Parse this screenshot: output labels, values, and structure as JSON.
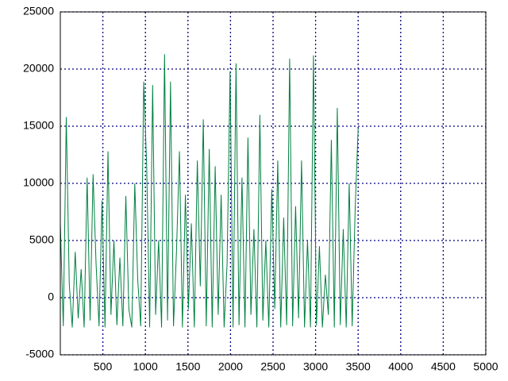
{
  "chart_data": {
    "type": "line",
    "x": [
      0,
      35,
      70,
      105,
      140,
      175,
      210,
      245,
      280,
      315,
      350,
      385,
      420,
      455,
      490,
      525,
      560,
      595,
      630,
      665,
      700,
      735,
      770,
      805,
      840,
      875,
      910,
      945,
      980,
      1015,
      1050,
      1085,
      1120,
      1155,
      1190,
      1225,
      1260,
      1295,
      1330,
      1365,
      1400,
      1435,
      1470,
      1505,
      1540,
      1575,
      1610,
      1645,
      1680,
      1715,
      1750,
      1785,
      1820,
      1855,
      1890,
      1925,
      1960,
      1995,
      2030,
      2065,
      2100,
      2135,
      2170,
      2205,
      2240,
      2275,
      2310,
      2345,
      2380,
      2415,
      2450,
      2485,
      2520,
      2555,
      2590,
      2625,
      2660,
      2695,
      2730,
      2765,
      2800,
      2835,
      2870,
      2905,
      2940,
      2975,
      3010,
      3045,
      3080,
      3115,
      3150,
      3185,
      3220,
      3255,
      3290,
      3325,
      3360,
      3395,
      3430,
      3465,
      3500
    ],
    "series": [
      {
        "color": "#008040",
        "values": [
          6500,
          -2500,
          15800,
          1200,
          -2600,
          4000,
          -1800,
          2500,
          -2600,
          10500,
          -2000,
          10800,
          3000,
          -2500,
          8500,
          -2600,
          12800,
          -1500,
          5000,
          -2400,
          3500,
          -2500,
          8900,
          -1000,
          -2600,
          10000,
          1500,
          -2500,
          18900,
          11500,
          -2600,
          18600,
          -1500,
          5000,
          -2600,
          21300,
          -2000,
          18900,
          -2500,
          4000,
          12800,
          -2600,
          9000,
          -1000,
          6500,
          -2600,
          12000,
          1000,
          15600,
          -2500,
          13000,
          -2600,
          11500,
          -1500,
          9000,
          -2600,
          3000,
          19800,
          -2600,
          20500,
          -2400,
          10500,
          -2600,
          14000,
          -1500,
          6000,
          -2600,
          16000,
          -2000,
          5000,
          -2600,
          9500,
          -1000,
          12000,
          -2600,
          7000,
          -2400,
          20900,
          -2500,
          8000,
          -1800,
          12000,
          -2600,
          5000,
          -2600,
          21200,
          -2400,
          4500,
          -2600,
          2000,
          -1500,
          13800,
          -2600,
          16600,
          -2400,
          6000,
          -2600,
          10000,
          -2500,
          7800,
          14800
        ]
      }
    ],
    "xlim": [
      0,
      5000
    ],
    "xticks": [
      500,
      1000,
      1500,
      2000,
      2500,
      3000,
      3500,
      4000,
      4500,
      5000
    ],
    "ylim": [
      -5000,
      25000
    ],
    "yticks": [
      -5000,
      0,
      5000,
      10000,
      15000,
      20000,
      25000
    ],
    "grid": true
  }
}
